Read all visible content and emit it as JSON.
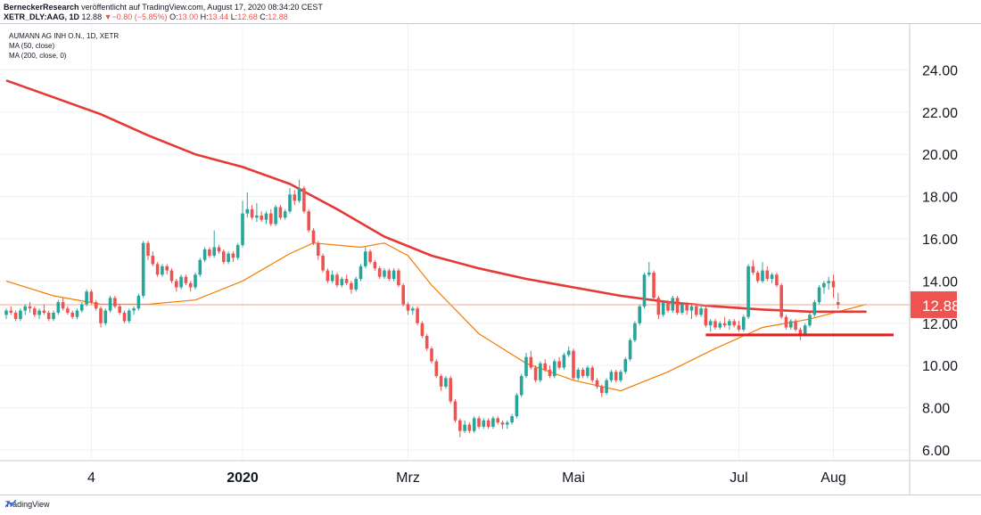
{
  "header": {
    "line1_author": "BerneckerResearch",
    "line1_rest": " veröffentlicht auf TradingView.com, August 17, 2020 08:34:20 CEST",
    "symbol": "XETR_DLY:AAG, 1D",
    "last": "12.88",
    "change_arrow": "▼",
    "change": "−0.80 (−5.85%)",
    "o_label": "O:",
    "o_value": "13.00",
    "h_label": "H:",
    "h_value": "13.44",
    "l_label": "L:",
    "l_value": "12.68",
    "c_label": "C:",
    "c_value": "12.88"
  },
  "legend": {
    "title": "AUMANN AG INH O.N., 1D, XETR",
    "ma50": "MA (50, close)",
    "ma200": "MA (200, close, 0)"
  },
  "footer": {
    "brand": "TradingView"
  },
  "colors": {
    "up": "#26a69a",
    "down": "#ef5350",
    "ma200": "#e53935",
    "ma50": "#f57c00",
    "grid": "#eef0f3",
    "price_line": "#f4a58c",
    "support": "#e31e1e",
    "last_label_bg": "#ef5350"
  },
  "chart_data": {
    "type": "candlestick",
    "y_range": [
      5.0,
      25.0
    ],
    "y_ticks": [
      "24.00",
      "22.00",
      "20.00",
      "18.00",
      "16.00",
      "14.00",
      "12.00",
      "10.00",
      "8.00",
      "6.00"
    ],
    "x_ticks": [
      "4",
      "2020",
      "Mrz",
      "Mai",
      "Jul",
      "Aug"
    ],
    "last_price": 12.88,
    "last_price_label": "12.88",
    "support_level": 11.45,
    "candles": [
      [
        12.4,
        12.7,
        12.2,
        12.6
      ],
      [
        12.6,
        12.8,
        12.4,
        12.5
      ],
      [
        12.5,
        12.6,
        12.1,
        12.2
      ],
      [
        12.2,
        12.7,
        12.1,
        12.6
      ],
      [
        12.6,
        12.9,
        12.4,
        12.8
      ],
      [
        12.8,
        13.0,
        12.5,
        12.7
      ],
      [
        12.7,
        12.8,
        12.3,
        12.4
      ],
      [
        12.4,
        12.7,
        12.2,
        12.6
      ],
      [
        12.6,
        12.9,
        12.4,
        12.5
      ],
      [
        12.5,
        12.6,
        12.1,
        12.2
      ],
      [
        12.2,
        12.6,
        12.1,
        12.5
      ],
      [
        12.5,
        13.1,
        12.4,
        13.0
      ],
      [
        13.0,
        13.2,
        12.6,
        12.7
      ],
      [
        12.7,
        12.8,
        12.4,
        12.5
      ],
      [
        12.5,
        12.6,
        12.2,
        12.3
      ],
      [
        12.3,
        12.7,
        12.2,
        12.6
      ],
      [
        12.6,
        13.0,
        12.5,
        12.9
      ],
      [
        12.9,
        13.6,
        12.8,
        13.5
      ],
      [
        13.5,
        13.6,
        12.9,
        13.0
      ],
      [
        13.0,
        13.1,
        12.6,
        12.7
      ],
      [
        12.7,
        12.8,
        11.8,
        12.0
      ],
      [
        12.0,
        12.7,
        11.9,
        12.6
      ],
      [
        12.6,
        13.3,
        12.5,
        13.2
      ],
      [
        13.2,
        13.3,
        12.7,
        12.8
      ],
      [
        12.8,
        12.9,
        12.4,
        12.5
      ],
      [
        12.5,
        12.6,
        12.0,
        12.1
      ],
      [
        12.1,
        12.7,
        12.0,
        12.6
      ],
      [
        12.6,
        12.8,
        12.4,
        12.7
      ],
      [
        12.7,
        13.4,
        12.6,
        13.3
      ],
      [
        13.3,
        15.9,
        13.2,
        15.8
      ],
      [
        15.8,
        15.9,
        15.0,
        15.2
      ],
      [
        15.2,
        15.4,
        14.7,
        14.8
      ],
      [
        14.8,
        14.9,
        14.2,
        14.3
      ],
      [
        14.3,
        14.8,
        14.2,
        14.7
      ],
      [
        14.7,
        14.8,
        14.3,
        14.5
      ],
      [
        14.5,
        14.6,
        13.9,
        14.0
      ],
      [
        14.0,
        14.1,
        13.5,
        13.7
      ],
      [
        13.7,
        14.3,
        13.6,
        14.2
      ],
      [
        14.2,
        14.3,
        13.8,
        13.9
      ],
      [
        13.9,
        14.0,
        13.5,
        13.7
      ],
      [
        13.7,
        14.4,
        13.6,
        14.3
      ],
      [
        14.3,
        15.1,
        14.2,
        15.0
      ],
      [
        15.0,
        15.6,
        14.9,
        15.5
      ],
      [
        15.5,
        15.6,
        15.1,
        15.2
      ],
      [
        15.2,
        16.4,
        15.1,
        15.6
      ],
      [
        15.6,
        15.7,
        15.3,
        15.4
      ],
      [
        15.4,
        15.5,
        14.8,
        14.9
      ],
      [
        14.9,
        15.4,
        14.8,
        15.3
      ],
      [
        15.3,
        15.4,
        14.9,
        15.1
      ],
      [
        15.1,
        15.8,
        15.0,
        15.7
      ],
      [
        15.7,
        17.8,
        15.6,
        17.2
      ],
      [
        17.2,
        18.2,
        17.0,
        17.4
      ],
      [
        17.4,
        17.6,
        16.9,
        17.0
      ],
      [
        17.0,
        17.7,
        16.8,
        17.1
      ],
      [
        17.1,
        17.3,
        16.8,
        16.9
      ],
      [
        16.9,
        17.3,
        16.7,
        17.2
      ],
      [
        17.2,
        17.4,
        16.6,
        16.7
      ],
      [
        16.7,
        17.6,
        16.6,
        17.5
      ],
      [
        17.5,
        17.6,
        16.9,
        17.0
      ],
      [
        17.0,
        17.4,
        16.9,
        17.3
      ],
      [
        17.3,
        18.4,
        17.2,
        18.1
      ],
      [
        18.1,
        18.3,
        17.6,
        17.8
      ],
      [
        17.8,
        18.8,
        17.7,
        18.4
      ],
      [
        18.4,
        18.5,
        17.2,
        17.3
      ],
      [
        17.3,
        17.4,
        16.3,
        16.4
      ],
      [
        16.4,
        16.5,
        15.7,
        15.8
      ],
      [
        15.8,
        15.9,
        15.0,
        15.2
      ],
      [
        15.2,
        15.3,
        14.4,
        14.5
      ],
      [
        14.5,
        14.6,
        13.9,
        14.0
      ],
      [
        14.0,
        14.5,
        13.9,
        14.3
      ],
      [
        14.3,
        14.4,
        13.7,
        13.8
      ],
      [
        13.8,
        14.2,
        13.7,
        14.1
      ],
      [
        14.1,
        14.3,
        13.8,
        13.9
      ],
      [
        13.9,
        14.0,
        13.4,
        13.6
      ],
      [
        13.6,
        14.2,
        13.5,
        14.1
      ],
      [
        14.1,
        14.8,
        14.0,
        14.7
      ],
      [
        14.7,
        15.6,
        14.6,
        15.4
      ],
      [
        15.4,
        15.5,
        14.8,
        14.9
      ],
      [
        14.9,
        15.0,
        14.5,
        14.6
      ],
      [
        14.6,
        14.7,
        14.1,
        14.2
      ],
      [
        14.2,
        14.6,
        14.1,
        14.5
      ],
      [
        14.5,
        14.6,
        14.0,
        14.1
      ],
      [
        14.1,
        14.6,
        14.0,
        14.5
      ],
      [
        14.5,
        14.6,
        13.7,
        13.8
      ],
      [
        13.8,
        13.9,
        12.8,
        12.9
      ],
      [
        12.9,
        13.0,
        12.4,
        12.6
      ],
      [
        12.6,
        12.8,
        12.4,
        12.7
      ],
      [
        12.7,
        12.8,
        11.9,
        12.0
      ],
      [
        12.0,
        12.1,
        11.3,
        11.4
      ],
      [
        11.4,
        11.5,
        10.7,
        10.8
      ],
      [
        10.8,
        10.9,
        10.1,
        10.2
      ],
      [
        10.2,
        10.3,
        9.4,
        9.5
      ],
      [
        9.5,
        9.6,
        8.8,
        9.0
      ],
      [
        9.0,
        9.5,
        8.9,
        9.4
      ],
      [
        9.4,
        9.5,
        8.2,
        8.3
      ],
      [
        8.3,
        8.4,
        7.3,
        7.4
      ],
      [
        7.4,
        7.5,
        6.6,
        6.9
      ],
      [
        6.9,
        7.4,
        6.8,
        7.2
      ],
      [
        7.2,
        7.3,
        6.8,
        6.9
      ],
      [
        6.9,
        7.6,
        6.8,
        7.5
      ],
      [
        7.5,
        7.6,
        7.0,
        7.1
      ],
      [
        7.1,
        7.5,
        7.0,
        7.4
      ],
      [
        7.4,
        7.5,
        7.0,
        7.1
      ],
      [
        7.1,
        7.6,
        7.0,
        7.5
      ],
      [
        7.5,
        7.6,
        7.2,
        7.3
      ],
      [
        7.3,
        7.4,
        7.0,
        7.2
      ],
      [
        7.2,
        7.4,
        7.0,
        7.3
      ],
      [
        7.3,
        7.7,
        7.2,
        7.6
      ],
      [
        7.6,
        8.7,
        7.5,
        8.6
      ],
      [
        8.6,
        9.6,
        8.5,
        9.5
      ],
      [
        9.5,
        10.6,
        9.4,
        10.4
      ],
      [
        10.4,
        10.7,
        9.8,
        9.9
      ],
      [
        9.9,
        10.0,
        9.2,
        9.3
      ],
      [
        9.3,
        10.2,
        9.2,
        10.1
      ],
      [
        10.1,
        10.3,
        9.7,
        9.8
      ],
      [
        9.8,
        10.0,
        9.4,
        9.5
      ],
      [
        9.5,
        10.3,
        9.4,
        10.2
      ],
      [
        10.2,
        10.4,
        9.8,
        9.9
      ],
      [
        9.9,
        10.6,
        9.8,
        10.5
      ],
      [
        10.5,
        10.9,
        10.4,
        10.7
      ],
      [
        10.7,
        10.8,
        9.3,
        9.4
      ],
      [
        9.4,
        9.9,
        9.3,
        9.8
      ],
      [
        9.8,
        9.9,
        9.4,
        9.5
      ],
      [
        9.5,
        10.0,
        9.4,
        9.9
      ],
      [
        9.9,
        10.0,
        9.2,
        9.3
      ],
      [
        9.3,
        9.4,
        8.9,
        9.0
      ],
      [
        9.0,
        9.1,
        8.5,
        8.7
      ],
      [
        8.7,
        9.4,
        8.6,
        9.3
      ],
      [
        9.3,
        9.8,
        9.2,
        9.7
      ],
      [
        9.7,
        9.8,
        9.2,
        9.3
      ],
      [
        9.3,
        9.8,
        9.2,
        9.7
      ],
      [
        9.7,
        10.4,
        9.6,
        10.3
      ],
      [
        10.3,
        11.3,
        10.2,
        11.2
      ],
      [
        11.2,
        12.1,
        11.1,
        12.0
      ],
      [
        12.0,
        12.9,
        11.9,
        12.8
      ],
      [
        12.8,
        14.4,
        12.7,
        14.3
      ],
      [
        14.3,
        14.9,
        14.2,
        14.4
      ],
      [
        14.4,
        14.5,
        13.1,
        13.2
      ],
      [
        13.2,
        13.3,
        12.2,
        12.4
      ],
      [
        12.4,
        13.1,
        12.3,
        13.0
      ],
      [
        13.0,
        13.1,
        12.5,
        12.6
      ],
      [
        12.6,
        13.3,
        12.5,
        13.2
      ],
      [
        13.2,
        13.3,
        12.4,
        12.5
      ],
      [
        12.5,
        13.0,
        12.4,
        12.9
      ],
      [
        12.9,
        13.0,
        12.4,
        12.6
      ],
      [
        12.6,
        12.9,
        12.2,
        12.8
      ],
      [
        12.8,
        12.9,
        12.3,
        12.4
      ],
      [
        12.4,
        12.8,
        12.3,
        12.7
      ],
      [
        12.7,
        12.8,
        11.8,
        11.9
      ],
      [
        11.9,
        12.2,
        11.6,
        12.1
      ],
      [
        12.1,
        12.2,
        11.7,
        11.8
      ],
      [
        11.8,
        12.1,
        11.7,
        12.0
      ],
      [
        12.0,
        12.3,
        11.8,
        11.9
      ],
      [
        11.9,
        12.2,
        11.7,
        12.1
      ],
      [
        12.1,
        12.2,
        11.8,
        11.9
      ],
      [
        11.9,
        12.1,
        11.6,
        11.7
      ],
      [
        11.7,
        12.4,
        11.6,
        12.3
      ],
      [
        12.3,
        14.8,
        12.2,
        14.7
      ],
      [
        14.7,
        15.0,
        14.3,
        14.4
      ],
      [
        14.4,
        14.5,
        13.9,
        14.0
      ],
      [
        14.0,
        14.9,
        13.9,
        14.5
      ],
      [
        14.5,
        14.7,
        14.0,
        14.1
      ],
      [
        14.1,
        14.4,
        13.9,
        14.3
      ],
      [
        14.3,
        14.4,
        13.7,
        13.8
      ],
      [
        13.8,
        13.9,
        12.2,
        12.3
      ],
      [
        12.3,
        12.4,
        11.7,
        11.8
      ],
      [
        11.8,
        12.2,
        11.7,
        12.1
      ],
      [
        12.1,
        12.2,
        11.6,
        11.7
      ],
      [
        11.7,
        11.8,
        11.2,
        11.5
      ],
      [
        11.5,
        12.0,
        11.4,
        11.9
      ],
      [
        11.9,
        12.5,
        11.8,
        12.4
      ],
      [
        12.4,
        13.1,
        12.3,
        13.0
      ],
      [
        13.0,
        13.8,
        12.9,
        13.7
      ],
      [
        13.7,
        14.0,
        13.4,
        13.9
      ],
      [
        13.9,
        14.2,
        13.6,
        14.0
      ],
      [
        14.0,
        14.3,
        13.2,
        13.7
      ],
      [
        13.0,
        13.44,
        12.68,
        12.88
      ]
    ],
    "ma200_path": [
      [
        0,
        23.5
      ],
      [
        10,
        22.7
      ],
      [
        20,
        21.9
      ],
      [
        30,
        20.9
      ],
      [
        40,
        20.0
      ],
      [
        50,
        19.4
      ],
      [
        60,
        18.6
      ],
      [
        70,
        17.4
      ],
      [
        80,
        16.1
      ],
      [
        90,
        15.2
      ],
      [
        100,
        14.6
      ],
      [
        110,
        14.1
      ],
      [
        120,
        13.7
      ],
      [
        130,
        13.3
      ],
      [
        140,
        13.0
      ],
      [
        150,
        12.8
      ],
      [
        160,
        12.65
      ],
      [
        170,
        12.55
      ],
      [
        182,
        12.55
      ]
    ],
    "ma50_path": [
      [
        0,
        14.0
      ],
      [
        10,
        13.3
      ],
      [
        20,
        12.9
      ],
      [
        30,
        12.9
      ],
      [
        40,
        13.1
      ],
      [
        50,
        14.0
      ],
      [
        60,
        15.3
      ],
      [
        65,
        15.8
      ],
      [
        75,
        15.6
      ],
      [
        80,
        15.8
      ],
      [
        85,
        15.2
      ],
      [
        90,
        13.8
      ],
      [
        100,
        11.5
      ],
      [
        110,
        10.1
      ],
      [
        120,
        9.3
      ],
      [
        130,
        8.8
      ],
      [
        140,
        9.7
      ],
      [
        150,
        10.8
      ],
      [
        160,
        11.8
      ],
      [
        170,
        12.2
      ],
      [
        182,
        12.9
      ]
    ]
  }
}
